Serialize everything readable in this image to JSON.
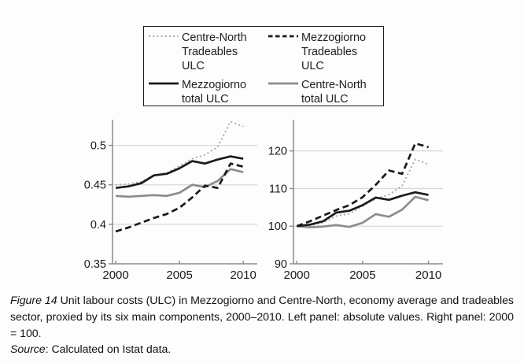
{
  "colors": {
    "black_line": "#1a1a1a",
    "gray_line": "#8c8c8c",
    "dotted_line": "#a8a8a8",
    "gridline": "#d8d8d8",
    "axis": "#8a8a8a",
    "legend_border": "#1c1c1c",
    "background": "#fdfdfd"
  },
  "legend": {
    "items": [
      {
        "style": "dotted",
        "color": "#a8a8a8",
        "lines": [
          "Centre-North",
          "Tradeables",
          "ULC"
        ]
      },
      {
        "style": "dashed",
        "color": "#1a1a1a",
        "lines": [
          "Mezzogiorno",
          "Tradeables",
          "ULC"
        ]
      },
      {
        "style": "solid",
        "color": "#1a1a1a",
        "lines": [
          "Mezzogiorno",
          "total ULC"
        ]
      },
      {
        "style": "solid",
        "color": "#8c8c8c",
        "lines": [
          "Centre-North",
          "total ULC"
        ]
      }
    ]
  },
  "caption": {
    "figure_label": "Figure 14",
    "body": "Unit labour costs (ULC) in Mezzogiorno and Centre-North, economy average and tradeables sector, proxied by its six main components, 2000–2010. Left panel: absolute values. Right panel: 2000 = 100.",
    "source_label": "Source",
    "source_body": ": Calculated on Istat data."
  },
  "chart_data": [
    {
      "type": "line",
      "panel": "left",
      "title": "",
      "xlabel": "",
      "ylabel": "",
      "description": "absolute values",
      "x": [
        2000,
        2001,
        2002,
        2003,
        2004,
        2005,
        2006,
        2007,
        2008,
        2009,
        2010
      ],
      "xlim": [
        1999.75,
        2011.1
      ],
      "xticks": [
        2000,
        2005,
        2010
      ],
      "xtick_labels": [
        "2000",
        "2005",
        "2010"
      ],
      "ylim": [
        0.35,
        0.5325
      ],
      "yticks": [
        0.35,
        0.4,
        0.45,
        0.5
      ],
      "ytick_labels": [
        "0.35",
        "0.4",
        "0.45",
        "0.5"
      ],
      "gridlines_y": [
        0.4,
        0.45,
        0.5
      ],
      "grid": true,
      "legend_position": "top",
      "series": [
        {
          "name": "Centre-North Tradeables ULC",
          "style": "dotted",
          "color": "#a8a8a8",
          "values": [
            0.45,
            0.451,
            0.454,
            0.462,
            0.465,
            0.474,
            0.483,
            0.488,
            0.498,
            0.53,
            0.524
          ]
        },
        {
          "name": "Centre-North total ULC",
          "style": "solid",
          "color": "#8c8c8c",
          "values": [
            0.436,
            0.435,
            0.436,
            0.437,
            0.436,
            0.44,
            0.45,
            0.447,
            0.455,
            0.47,
            0.466
          ]
        },
        {
          "name": "Mezzogiorno Tradeables ULC",
          "style": "dashed",
          "color": "#1a1a1a",
          "values": [
            0.391,
            0.396,
            0.402,
            0.408,
            0.413,
            0.421,
            0.434,
            0.449,
            0.446,
            0.477,
            0.473
          ]
        },
        {
          "name": "Mezzogiorno total ULC",
          "style": "solid",
          "color": "#1a1a1a",
          "values": [
            0.446,
            0.448,
            0.452,
            0.462,
            0.464,
            0.471,
            0.48,
            0.477,
            0.482,
            0.486,
            0.483
          ]
        }
      ]
    },
    {
      "type": "line",
      "panel": "right",
      "title": "",
      "xlabel": "",
      "ylabel": "",
      "description": "index 2000 = 100",
      "x": [
        2000,
        2001,
        2002,
        2003,
        2004,
        2005,
        2006,
        2007,
        2008,
        2009,
        2010
      ],
      "xlim": [
        1999.75,
        2011.1
      ],
      "xticks": [
        2000,
        2005,
        2010
      ],
      "xtick_labels": [
        "2000",
        "2005",
        "2010"
      ],
      "ylim": [
        90,
        128.3
      ],
      "yticks": [
        90,
        100,
        110,
        120
      ],
      "ytick_labels": [
        "90",
        "100",
        "110",
        "120"
      ],
      "gridlines_y": [
        100,
        110,
        120
      ],
      "grid": true,
      "legend_position": "top",
      "series": [
        {
          "name": "Centre-North Tradeables ULC",
          "style": "dotted",
          "color": "#a8a8a8",
          "values": [
            100,
            100.2,
            100.9,
            102.7,
            103.3,
            105.3,
            107.3,
            108.4,
            110.7,
            117.8,
            116.4
          ]
        },
        {
          "name": "Centre-North total ULC",
          "style": "solid",
          "color": "#8c8c8c",
          "values": [
            100,
            99.7,
            99.9,
            100.3,
            99.8,
            100.9,
            103.2,
            102.5,
            104.4,
            107.8,
            106.9
          ]
        },
        {
          "name": "Mezzogiorno Tradeables ULC",
          "style": "dashed",
          "color": "#1a1a1a",
          "values": [
            100,
            101.3,
            102.8,
            104.3,
            105.6,
            107.7,
            111.0,
            114.8,
            113.9,
            122.0,
            121.0
          ]
        },
        {
          "name": "Mezzogiorno total ULC",
          "style": "solid",
          "color": "#1a1a1a",
          "values": [
            100,
            100.4,
            101.3,
            103.6,
            104.1,
            105.6,
            107.6,
            107.0,
            108.1,
            109.0,
            108.3
          ]
        }
      ]
    }
  ]
}
